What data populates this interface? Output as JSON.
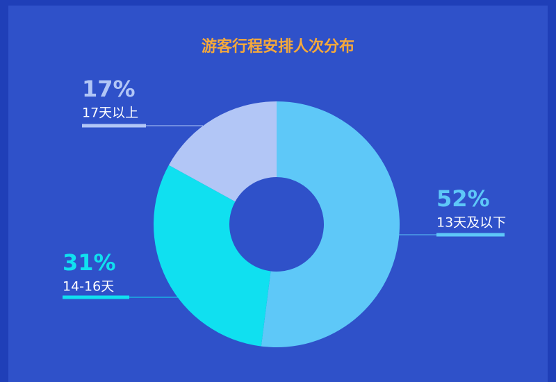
{
  "chart_data": {
    "type": "donut",
    "title": "游客行程安排人次分布",
    "categories": [
      "13天及以下",
      "14-16天",
      "17天以上"
    ],
    "values": [
      52,
      31,
      17
    ],
    "value_labels": [
      "52%",
      "31%",
      "17%"
    ],
    "colors": [
      "#5ec8f8",
      "#10e0f0",
      "#b2c6f6"
    ]
  }
}
